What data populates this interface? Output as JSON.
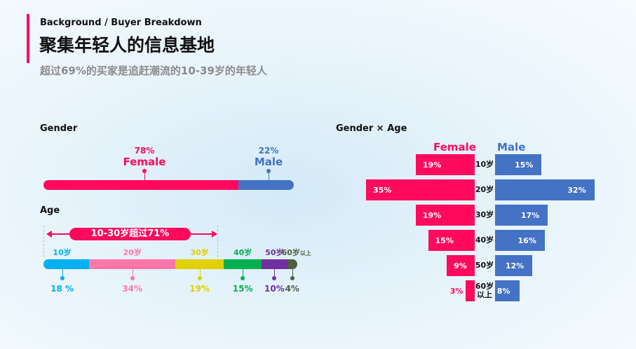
{
  "header": {
    "breadcrumb": "Background / Buyer Breakdown",
    "title": "聚集年轻人的信息基地",
    "subtitle": "超过69%的买家是追赶潮流的10-39岁的年轻人"
  },
  "colors": {
    "accent": "#ff0a5c",
    "female": "#ff0a5c",
    "male": "#4472c4"
  },
  "chart_data": [
    {
      "type": "bar",
      "title": "Gender",
      "orientation": "horizontal-stacked",
      "series": [
        {
          "name": "Female",
          "value": 78,
          "label": "78%",
          "color": "#ff0a5c"
        },
        {
          "name": "Male",
          "value": 22,
          "label": "22%",
          "color": "#4472c4"
        }
      ]
    },
    {
      "type": "bar",
      "title": "Age",
      "orientation": "horizontal-stacked",
      "annotation": "10-30岁超过71%",
      "categories": [
        "10岁",
        "20岁",
        "30岁",
        "40岁",
        "50岁",
        "60岁以上"
      ],
      "values": [
        18,
        34,
        19,
        15,
        10,
        4
      ],
      "labels": [
        "18 %",
        "34%",
        "19%",
        "15%",
        "10%",
        "4%"
      ],
      "colors": [
        "#00b0f0",
        "#ff77a8",
        "#e0d000",
        "#00b050",
        "#7030a0",
        "#4f5f3f"
      ]
    },
    {
      "type": "bar",
      "title": "Gender × Age",
      "orientation": "population-pyramid",
      "categories": [
        "10岁",
        "20岁",
        "30岁",
        "40岁",
        "50岁",
        "60岁以上"
      ],
      "series": [
        {
          "name": "Female",
          "values": [
            19,
            35,
            19,
            15,
            9,
            3
          ],
          "color": "#ff0a5c"
        },
        {
          "name": "Male",
          "values": [
            15,
            32,
            17,
            16,
            12,
            8
          ],
          "color": "#4472c4"
        }
      ]
    }
  ]
}
